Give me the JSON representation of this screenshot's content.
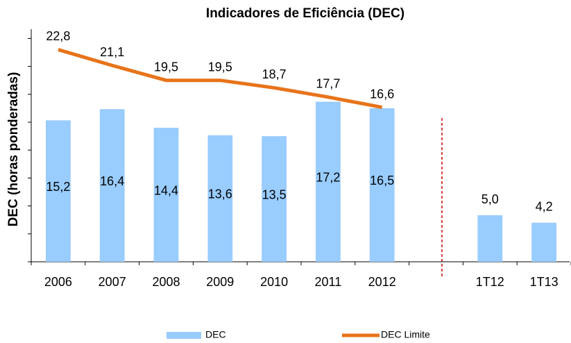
{
  "chart_data": {
    "type": "bar",
    "title": "Indicadores de Eficiência (DEC)",
    "y_label": "DEC (horas ponderadas)",
    "categories": [
      "2006",
      "2007",
      "2008",
      "2009",
      "2010",
      "2011",
      "2012",
      null,
      "1T12",
      "1T13"
    ],
    "series": [
      {
        "name": "DEC",
        "type": "bar",
        "color": "#99ccff",
        "values": [
          15.2,
          16.4,
          14.4,
          13.6,
          13.5,
          17.2,
          16.5,
          null,
          5.0,
          4.2
        ],
        "value_labels": [
          "15,2",
          "16,4",
          "14,4",
          "13,6",
          "13,5",
          "17,2",
          "16,5",
          null,
          "5,0",
          "4,2"
        ]
      },
      {
        "name": "DEC Limite",
        "type": "line",
        "color": "#e8731a",
        "values": [
          22.8,
          21.1,
          19.5,
          19.5,
          18.7,
          17.7,
          16.6,
          null,
          null,
          null
        ],
        "value_labels": [
          "22,8",
          "21,1",
          "19,5",
          "19,5",
          "18,7",
          "17,7",
          "16,6",
          null,
          null,
          null
        ]
      }
    ],
    "ylim": [
      0,
      25
    ],
    "yticks": [
      0,
      3,
      6,
      9,
      12,
      15,
      18,
      21,
      24
    ],
    "grid": false,
    "legend": "bottom"
  }
}
